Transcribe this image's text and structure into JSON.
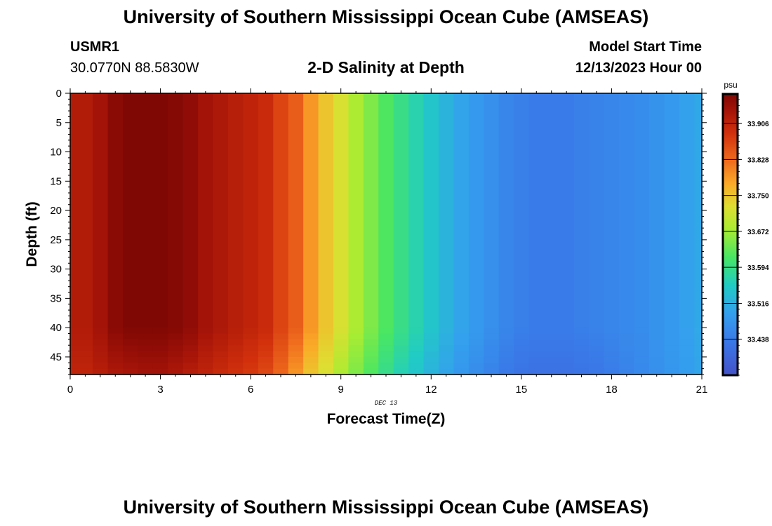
{
  "header": {
    "title": "University of Southern Mississippi Ocean Cube (AMSEAS)",
    "station_id": "USMR1",
    "coordinates": "30.0770N  88.5830W",
    "plot_title": "2-D Salinity at Depth",
    "model_start_label": "Model Start Time",
    "model_start_value": "12/13/2023 Hour 00"
  },
  "footer": {
    "title": "University of Southern Mississippi Ocean Cube (AMSEAS)"
  },
  "chart_data": {
    "type": "heatmap",
    "title": "2-D Salinity at Depth",
    "xlabel": "Forecast Time(Z)",
    "ylabel": "Depth (ft)",
    "date_label": "DEC 13",
    "xlim": [
      0,
      21
    ],
    "ylim": [
      0,
      48
    ],
    "x_ticks": [
      0,
      3,
      6,
      9,
      12,
      15,
      18,
      21
    ],
    "y_ticks": [
      0,
      5,
      10,
      15,
      20,
      25,
      30,
      35,
      40,
      45
    ],
    "colorbar": {
      "unit": "psu",
      "range": [
        33.36,
        33.97
      ],
      "ticks": [
        "33.906",
        "33.828",
        "33.750",
        "33.672",
        "33.594",
        "33.516",
        "33.438"
      ]
    },
    "time_steps": [
      0,
      0.75,
      1.25,
      1.75,
      2.25,
      2.75,
      3.25,
      3.75,
      4.25,
      4.75,
      5.25,
      5.75,
      6.25,
      6.75,
      7.25,
      7.75,
      8.25,
      8.75,
      9.25,
      9.75,
      10.25,
      10.75,
      11.25,
      11.75,
      12.25,
      12.75,
      13.25,
      13.75,
      14.25,
      14.75,
      15.25,
      15.75,
      16.25,
      16.75,
      17.25,
      17.75,
      18.25,
      18.75,
      19.25,
      19.75,
      20.25,
      20.75,
      21
    ],
    "surface_salinity": [
      33.92,
      33.935,
      33.96,
      33.97,
      33.97,
      33.97,
      33.965,
      33.955,
      33.935,
      33.925,
      33.915,
      33.905,
      33.895,
      33.865,
      33.84,
      33.79,
      33.75,
      33.72,
      33.68,
      33.65,
      33.62,
      33.595,
      33.57,
      33.545,
      33.52,
      33.5,
      33.485,
      33.47,
      33.455,
      33.445,
      33.44,
      33.44,
      33.44,
      33.445,
      33.45,
      33.455,
      33.46,
      33.465,
      33.475,
      33.485,
      33.495,
      33.505
    ],
    "bottom_layer_salinity": [
      33.905,
      33.915,
      33.925,
      33.93,
      33.935,
      33.935,
      33.925,
      33.915,
      33.905,
      33.895,
      33.885,
      33.875,
      33.86,
      33.83,
      33.79,
      33.75,
      33.72,
      33.68,
      33.65,
      33.62,
      33.59,
      33.565,
      33.545,
      33.52,
      33.5,
      33.48,
      33.465,
      33.45,
      33.435,
      33.425,
      33.42,
      33.42,
      33.42,
      33.425,
      33.43,
      33.44,
      33.45,
      33.46,
      33.47,
      33.48,
      33.49,
      33.5
    ],
    "bottom_layer_depth_range_ft": [
      40,
      48
    ]
  }
}
